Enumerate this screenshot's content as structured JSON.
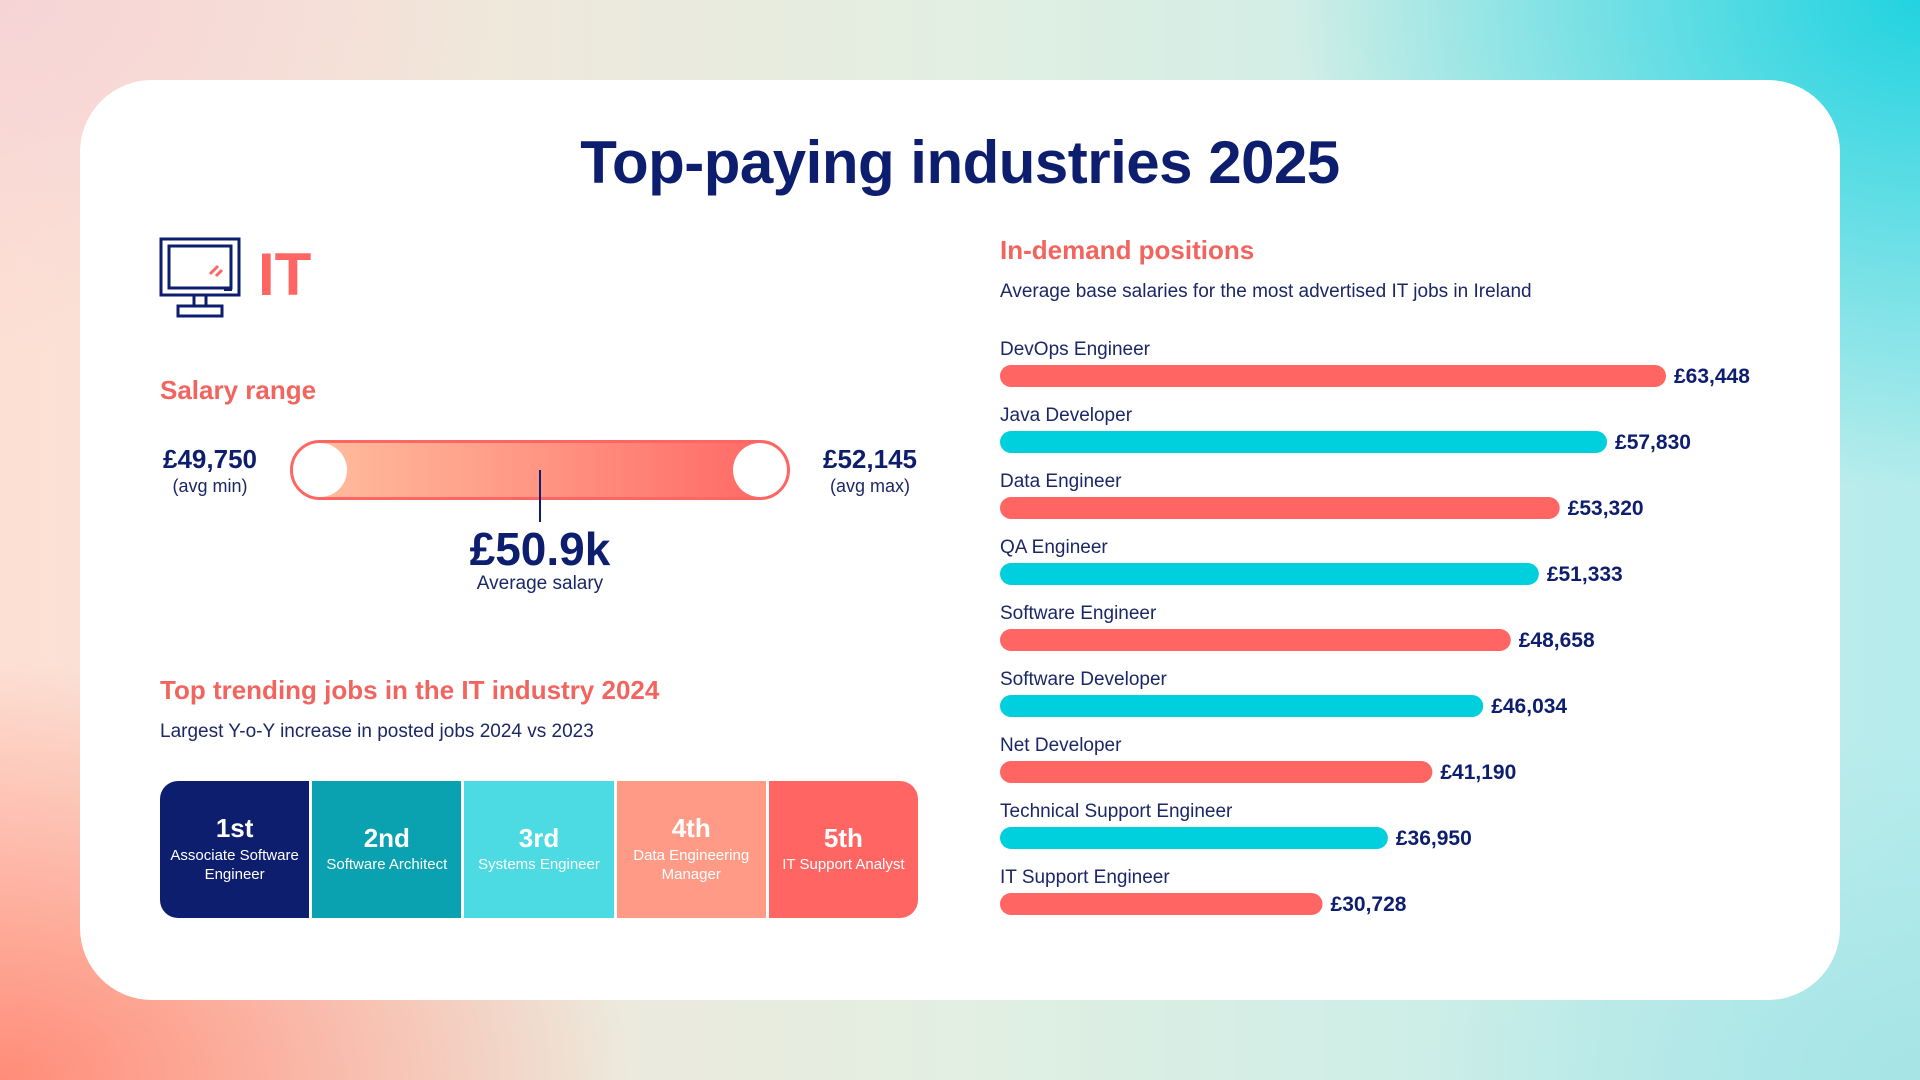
{
  "title": "Top-paying industries 2025",
  "industry": {
    "name": "IT",
    "icon": "computer-monitor-icon"
  },
  "salary_range": {
    "heading": "Salary range",
    "min_value": "£49,750",
    "min_label": "(avg min)",
    "max_value": "£52,145",
    "max_label": "(avg max)",
    "average_value": "£50.9k",
    "average_label": "Average salary"
  },
  "trending": {
    "heading": "Top trending jobs in the IT industry 2024",
    "subheading": "Largest Y-o-Y increase in posted jobs 2024 vs 2023",
    "items": [
      {
        "rank": "1st",
        "job": "Associate Software Engineer",
        "color": "#0e1e6e"
      },
      {
        "rank": "2nd",
        "job": "Software Architect",
        "color": "#0aa1b0"
      },
      {
        "rank": "3rd",
        "job": "Systems Engineer",
        "color": "#4ddbe3"
      },
      {
        "rank": "4th",
        "job": "Data Engineering Manager",
        "color": "#ff9a86"
      },
      {
        "rank": "5th",
        "job": "IT Support Analyst",
        "color": "#ff6562"
      }
    ]
  },
  "in_demand": {
    "heading": "In-demand positions",
    "subheading": "Average base salaries for the most advertised IT jobs in Ireland"
  },
  "colors": {
    "navy": "#0e1e6e",
    "coral": "#ff6562",
    "cyan": "#00d0dd"
  },
  "chart_data": {
    "type": "bar",
    "orientation": "horizontal",
    "categories": [
      "DevOps Engineer",
      "Java Developer",
      "Data Engineer",
      "QA Engineer",
      "Software Engineer",
      "Software Developer",
      "Net Developer",
      "Technical Support Engineer",
      "IT Support Engineer"
    ],
    "values": [
      63448,
      57830,
      53320,
      51333,
      48658,
      46034,
      41190,
      36950,
      30728
    ],
    "value_labels": [
      "£63,448",
      "£57,830",
      "£53,320",
      "£51,333",
      "£48,658",
      "£46,034",
      "£41,190",
      "£36,950",
      "£30,728"
    ],
    "bar_colors": [
      "#ff6562",
      "#00d0dd",
      "#ff6562",
      "#00d0dd",
      "#ff6562",
      "#00d0dd",
      "#ff6562",
      "#00d0dd",
      "#ff6562"
    ],
    "xlim": [
      0,
      63448
    ],
    "grid": false,
    "legend": false
  }
}
